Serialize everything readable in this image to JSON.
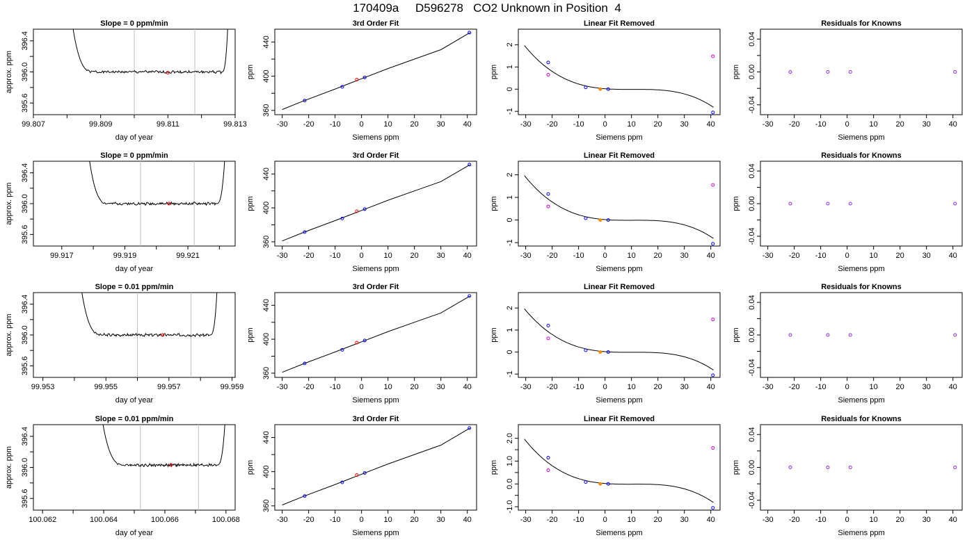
{
  "page_title": "170409a     D596278   CO2 Unknown in Position  4",
  "colors": {
    "curve": "#000000",
    "known_point": "#0000ff",
    "unknown_point": "#ff0000",
    "unknown_removed": "#ff8c00",
    "residual_point": "#8a2be2",
    "raw_point": "#d000d0",
    "window_line": "#bebebe"
  },
  "chart_data": [
    {
      "type": "line",
      "row": 1,
      "title": "Slope =  0  ppm/min",
      "xlabel": "day of year",
      "ylabel": "approx. ppm",
      "xlim": [
        99.807,
        99.813
      ],
      "ylim": [
        395.45,
        396.55
      ],
      "xticks": [
        99.807,
        99.808,
        99.809,
        99.81,
        99.811,
        99.812,
        99.813
      ],
      "xtick_labels": [
        "99.807",
        "",
        "99.809",
        "",
        "99.811",
        "",
        "99.813"
      ],
      "yticks": [
        395.6,
        395.8,
        396.0,
        396.2,
        396.4
      ],
      "ytick_labels": [
        "395.6",
        "",
        "396.0",
        "",
        "396.4"
      ],
      "trace_x": [
        99.8079,
        99.8081,
        99.8088,
        99.8126,
        99.8128
      ],
      "trace_y": [
        397.2,
        396.8,
        396.02,
        396.02,
        396.8
      ],
      "trace_level": 396.0,
      "trace_seed": 1,
      "window_x": [
        99.81,
        99.8118
      ],
      "point": {
        "x": 99.811,
        "y": 395.99
      }
    },
    {
      "type": "scatter",
      "row": 1,
      "title": "3rd Order Fit",
      "xlabel": "Siemens ppm",
      "ylabel": "ppm",
      "xlim": [
        -32.8,
        43.5
      ],
      "ylim": [
        355,
        455
      ],
      "xticks": [
        -30,
        -20,
        -10,
        0,
        10,
        20,
        30,
        40
      ],
      "xtick_labels": [
        "-30",
        "-20",
        "-10",
        "0",
        "10",
        "20",
        "30",
        "40"
      ],
      "yticks": [
        360,
        380,
        400,
        420,
        440
      ],
      "ytick_labels": [
        "360",
        "",
        "400",
        "",
        "440"
      ],
      "curve_x": [
        -30,
        -22,
        -10,
        0,
        10,
        20,
        30,
        41
      ],
      "curve_y": [
        361,
        371,
        385,
        397,
        409,
        420,
        431,
        451
      ],
      "known_x": [
        -21.5,
        -7.3,
        1.2,
        40.8
      ],
      "known_y": [
        371.5,
        387.5,
        398.5,
        451
      ],
      "unknown": {
        "x": -1.8,
        "y": 396
      }
    },
    {
      "type": "scatter",
      "row": 1,
      "title": "Linear Fit Removed",
      "xlabel": "Siemens ppm",
      "ylabel": "ppm",
      "xlim": [
        -32.8,
        43.5
      ],
      "ylim": [
        -1.15,
        2.7
      ],
      "xticks": [
        -30,
        -20,
        -10,
        0,
        10,
        20,
        30,
        40
      ],
      "xtick_labels": [
        "-30",
        "-20",
        "-10",
        "0",
        "10",
        "20",
        "30",
        "40"
      ],
      "yticks": [
        -1,
        0,
        1,
        2
      ],
      "ytick_labels": [
        "-1",
        "0",
        "1",
        "2"
      ],
      "poly": [
        0.0183,
        -0.0092,
        0.000913,
        -2.89e-05
      ],
      "curve_xmin": -30.5,
      "curve_xmax": 41,
      "known_x": [
        -21.5,
        -7.3,
        1.2,
        40.8
      ],
      "known_y": [
        1.2,
        0.08,
        0.0,
        -1.05
      ],
      "raw_x": [
        -21.5,
        40.8
      ],
      "raw_y": [
        0.65,
        1.48
      ],
      "unknown": {
        "x": -1.8,
        "y": 0.0
      }
    },
    {
      "type": "scatter",
      "row": 1,
      "title": "Residuals for Knowns",
      "xlabel": "Siemens ppm",
      "ylabel": "ppm",
      "xlim": [
        -32.8,
        43.5
      ],
      "ylim": [
        -0.052,
        0.052
      ],
      "xticks": [
        -30,
        -20,
        -10,
        0,
        10,
        20,
        30,
        40
      ],
      "xtick_labels": [
        "-30",
        "-20",
        "-10",
        "0",
        "10",
        "20",
        "30",
        "40"
      ],
      "yticks": [
        -0.04,
        -0.02,
        0.0,
        0.02,
        0.04
      ],
      "ytick_labels": [
        "-0.04",
        "",
        "0.00",
        "",
        "0.04"
      ],
      "known_x": [
        -21.5,
        -7.3,
        1.2,
        40.8
      ],
      "known_y": [
        0,
        0,
        0,
        0
      ]
    },
    {
      "type": "line",
      "row": 2,
      "title": "Slope =  0  ppm/min",
      "xlabel": "day of year",
      "ylabel": "approx. ppm",
      "xlim": [
        99.9161,
        99.9225
      ],
      "ylim": [
        395.45,
        396.55
      ],
      "xticks": [
        99.917,
        99.918,
        99.919,
        99.92,
        99.921,
        99.922
      ],
      "xtick_labels": [
        "99.917",
        "",
        "99.919",
        "",
        "99.921",
        ""
      ],
      "yticks": [
        395.6,
        395.8,
        396.0,
        396.2,
        396.4
      ],
      "ytick_labels": [
        "395.6",
        "",
        "396.0",
        "",
        "396.4"
      ],
      "trace_x": [
        99.9176,
        99.9178,
        99.9185,
        99.9219,
        99.9222
      ],
      "trace_y": [
        397.2,
        396.8,
        396.05,
        396.0,
        396.8
      ],
      "trace_level": 396.0,
      "trace_seed": 2,
      "window_x": [
        99.9195,
        99.9212
      ],
      "point": {
        "x": 99.9204,
        "y": 396.0
      }
    },
    {
      "type": "scatter",
      "row": 2,
      "title": "3rd Order Fit",
      "xlabel": "Siemens ppm",
      "ylabel": "ppm",
      "xlim": [
        -32.8,
        43.5
      ],
      "ylim": [
        355,
        455
      ],
      "xticks": [
        -30,
        -20,
        -10,
        0,
        10,
        20,
        30,
        40
      ],
      "xtick_labels": [
        "-30",
        "-20",
        "-10",
        "0",
        "10",
        "20",
        "30",
        "40"
      ],
      "yticks": [
        360,
        380,
        400,
        420,
        440
      ],
      "ytick_labels": [
        "360",
        "",
        "400",
        "",
        "440"
      ],
      "curve_x": [
        -30,
        -22,
        -10,
        0,
        10,
        20,
        30,
        41
      ],
      "curve_y": [
        361,
        371,
        385,
        397,
        409,
        420,
        431,
        451
      ],
      "known_x": [
        -21.5,
        -7.3,
        1.2,
        40.8
      ],
      "known_y": [
        371.5,
        387.5,
        398.5,
        451
      ],
      "unknown": {
        "x": -1.8,
        "y": 396
      }
    },
    {
      "type": "scatter",
      "row": 2,
      "title": "Linear Fit Removed",
      "xlabel": "Siemens ppm",
      "ylabel": "ppm",
      "xlim": [
        -32.8,
        43.5
      ],
      "ylim": [
        -1.15,
        2.6
      ],
      "xticks": [
        -30,
        -20,
        -10,
        0,
        10,
        20,
        30,
        40
      ],
      "xtick_labels": [
        "-30",
        "-20",
        "-10",
        "0",
        "10",
        "20",
        "30",
        "40"
      ],
      "yticks": [
        -1,
        0,
        1,
        2
      ],
      "ytick_labels": [
        "-1",
        "0",
        "1",
        "2"
      ],
      "poly": [
        0.0183,
        -0.0092,
        0.000913,
        -2.89e-05
      ],
      "curve_xmin": -30.5,
      "curve_xmax": 41,
      "known_x": [
        -21.5,
        -7.3,
        1.2,
        40.8
      ],
      "known_y": [
        1.15,
        0.08,
        0.0,
        -1.05
      ],
      "raw_x": [
        -21.5,
        40.8
      ],
      "raw_y": [
        0.6,
        1.55
      ],
      "unknown": {
        "x": -1.8,
        "y": 0.0
      }
    },
    {
      "type": "scatter",
      "row": 2,
      "title": "Residuals for Knowns",
      "xlabel": "Siemens ppm",
      "ylabel": "ppm",
      "xlim": [
        -32.8,
        43.5
      ],
      "ylim": [
        -0.052,
        0.052
      ],
      "xticks": [
        -30,
        -20,
        -10,
        0,
        10,
        20,
        30,
        40
      ],
      "xtick_labels": [
        "-30",
        "-20",
        "-10",
        "0",
        "10",
        "20",
        "30",
        "40"
      ],
      "yticks": [
        -0.04,
        -0.02,
        0.0,
        0.02,
        0.04
      ],
      "ytick_labels": [
        "-0.04",
        "",
        "0.00",
        "",
        "0.04"
      ],
      "known_x": [
        -21.5,
        -7.3,
        1.2,
        40.8
      ],
      "known_y": [
        0,
        0,
        0,
        0
      ]
    },
    {
      "type": "line",
      "row": 3,
      "title": "Slope =  0.01  ppm/min",
      "xlabel": "day of year",
      "ylabel": "approx. ppm",
      "xlim": [
        99.9527,
        99.9591
      ],
      "ylim": [
        395.45,
        396.55
      ],
      "xticks": [
        99.953,
        99.954,
        99.955,
        99.956,
        99.957,
        99.958,
        99.959
      ],
      "xtick_labels": [
        "99.953",
        "",
        "99.955",
        "",
        "99.957",
        "",
        "99.959"
      ],
      "yticks": [
        395.6,
        395.8,
        396.0,
        396.2,
        396.4
      ],
      "ytick_labels": [
        "395.6",
        "",
        "396.0",
        "",
        "396.4"
      ],
      "trace_x": [
        99.95395,
        99.95415,
        99.9549,
        99.9583,
        99.95855
      ],
      "trace_y": [
        397.2,
        396.8,
        396.02,
        396.0,
        396.8
      ],
      "trace_level": 396.0,
      "trace_seed": 3,
      "window_x": [
        99.956,
        99.9577
      ],
      "point": {
        "x": 99.9568,
        "y": 396.0
      }
    },
    {
      "type": "scatter",
      "row": 3,
      "title": "3rd Order Fit",
      "xlabel": "Siemens ppm",
      "ylabel": "ppm",
      "xlim": [
        -32.8,
        43.5
      ],
      "ylim": [
        355,
        455
      ],
      "xticks": [
        -30,
        -20,
        -10,
        0,
        10,
        20,
        30,
        40
      ],
      "xtick_labels": [
        "-30",
        "-20",
        "-10",
        "0",
        "10",
        "20",
        "30",
        "40"
      ],
      "yticks": [
        360,
        380,
        400,
        420,
        440
      ],
      "ytick_labels": [
        "360",
        "",
        "400",
        "",
        "440"
      ],
      "curve_x": [
        -30,
        -22,
        -10,
        0,
        10,
        20,
        30,
        41
      ],
      "curve_y": [
        361,
        371,
        385,
        397,
        409,
        420,
        431,
        451
      ],
      "known_x": [
        -21.5,
        -7.3,
        1.2,
        40.8
      ],
      "known_y": [
        371.5,
        387.5,
        398.5,
        451
      ],
      "unknown": {
        "x": -1.8,
        "y": 396
      }
    },
    {
      "type": "scatter",
      "row": 3,
      "title": "Linear Fit Removed",
      "xlabel": "Siemens ppm",
      "ylabel": "ppm",
      "xlim": [
        -32.8,
        43.5
      ],
      "ylim": [
        -1.15,
        2.7
      ],
      "xticks": [
        -30,
        -20,
        -10,
        0,
        10,
        20,
        30,
        40
      ],
      "xtick_labels": [
        "-30",
        "-20",
        "-10",
        "0",
        "10",
        "20",
        "30",
        "40"
      ],
      "yticks": [
        -1,
        0,
        1,
        2
      ],
      "ytick_labels": [
        "-1",
        "0",
        "1",
        "2"
      ],
      "poly": [
        0.0183,
        -0.0092,
        0.000913,
        -2.89e-05
      ],
      "curve_xmin": -30.5,
      "curve_xmax": 41,
      "known_x": [
        -21.5,
        -7.3,
        1.2,
        40.8
      ],
      "known_y": [
        1.2,
        0.08,
        0.0,
        -1.05
      ],
      "raw_x": [
        -21.5,
        40.8
      ],
      "raw_y": [
        0.62,
        1.48
      ],
      "unknown": {
        "x": -1.8,
        "y": 0.0
      }
    },
    {
      "type": "scatter",
      "row": 3,
      "title": "Residuals for Knowns",
      "xlabel": "Siemens ppm",
      "ylabel": "ppm",
      "xlim": [
        -32.8,
        43.5
      ],
      "ylim": [
        -0.052,
        0.052
      ],
      "xticks": [
        -30,
        -20,
        -10,
        0,
        10,
        20,
        30,
        40
      ],
      "xtick_labels": [
        "-30",
        "-20",
        "-10",
        "0",
        "10",
        "20",
        "30",
        "40"
      ],
      "yticks": [
        -0.04,
        -0.02,
        0.0,
        0.02,
        0.04
      ],
      "ytick_labels": [
        "-0.04",
        "",
        "0.00",
        "",
        "0.04"
      ],
      "known_x": [
        -21.5,
        -7.3,
        1.2,
        40.8
      ],
      "known_y": [
        0,
        0,
        0,
        0
      ]
    },
    {
      "type": "line",
      "row": 4,
      "title": "Slope =  0.01  ppm/min",
      "xlabel": "day of year",
      "ylabel": "approx. ppm",
      "xlim": [
        100.0617,
        100.0683
      ],
      "ylim": [
        395.45,
        396.55
      ],
      "xticks": [
        100.062,
        100.063,
        100.064,
        100.065,
        100.066,
        100.067,
        100.068
      ],
      "xtick_labels": [
        "100.062",
        "",
        "100.064",
        "",
        "100.066",
        "",
        "100.068"
      ],
      "yticks": [
        395.6,
        395.8,
        396.0,
        396.2,
        396.4
      ],
      "ytick_labels": [
        "395.6",
        "",
        "396.0",
        "",
        "396.4"
      ],
      "trace_x": [
        100.0637,
        100.064,
        100.0647,
        100.0677,
        100.068
      ],
      "trace_y": [
        397.2,
        396.5,
        396.05,
        396.03,
        396.8
      ],
      "trace_level": 396.03,
      "trace_seed": 4,
      "window_x": [
        100.0652,
        100.0671
      ],
      "point": {
        "x": 100.0662,
        "y": 396.03
      }
    },
    {
      "type": "scatter",
      "row": 4,
      "title": "3rd Order Fit",
      "xlabel": "Siemens ppm",
      "ylabel": "ppm",
      "xlim": [
        -32.8,
        43.5
      ],
      "ylim": [
        355,
        455
      ],
      "xticks": [
        -30,
        -20,
        -10,
        0,
        10,
        20,
        30,
        40
      ],
      "xtick_labels": [
        "-30",
        "-20",
        "-10",
        "0",
        "10",
        "20",
        "30",
        "40"
      ],
      "yticks": [
        360,
        380,
        400,
        420,
        440
      ],
      "ytick_labels": [
        "360",
        "",
        "400",
        "",
        "440"
      ],
      "curve_x": [
        -30,
        -22,
        -10,
        0,
        10,
        20,
        30,
        41
      ],
      "curve_y": [
        361,
        371,
        385,
        397,
        409,
        420,
        431,
        451
      ],
      "known_x": [
        -21.5,
        -7.3,
        1.2,
        40.8
      ],
      "known_y": [
        371.5,
        387.5,
        398.5,
        451
      ],
      "unknown": {
        "x": -1.8,
        "y": 396
      }
    },
    {
      "type": "scatter",
      "row": 4,
      "title": "Linear Fit Removed",
      "xlabel": "Siemens ppm",
      "ylabel": "ppm",
      "xlim": [
        -32.8,
        43.5
      ],
      "ylim": [
        -1.15,
        2.6
      ],
      "xticks": [
        -30,
        -20,
        -10,
        0,
        10,
        20,
        30,
        40
      ],
      "xtick_labels": [
        "-30",
        "-20",
        "-10",
        "0",
        "10",
        "20",
        "30",
        "40"
      ],
      "yticks": [
        -1.0,
        -0.5,
        0.0,
        0.5,
        1.0,
        1.5,
        2.0
      ],
      "ytick_labels": [
        "-1.0",
        "",
        "0.0",
        "",
        "1.0",
        "",
        "2.0"
      ],
      "poly": [
        0.0183,
        -0.0092,
        0.000913,
        -2.89e-05
      ],
      "curve_xmin": -30.5,
      "curve_xmax": 41,
      "known_x": [
        -21.5,
        -7.3,
        1.2,
        40.8
      ],
      "known_y": [
        1.15,
        0.08,
        0.0,
        -1.05
      ],
      "raw_x": [
        -21.5,
        40.8
      ],
      "raw_y": [
        0.6,
        1.58
      ],
      "unknown": {
        "x": -1.8,
        "y": 0.0
      }
    },
    {
      "type": "scatter",
      "row": 4,
      "title": "Residuals for Knowns",
      "xlabel": "Siemens ppm",
      "ylabel": "ppm",
      "xlim": [
        -32.8,
        43.5
      ],
      "ylim": [
        -0.052,
        0.052
      ],
      "xticks": [
        -30,
        -20,
        -10,
        0,
        10,
        20,
        30,
        40
      ],
      "xtick_labels": [
        "-30",
        "-20",
        "-10",
        "0",
        "10",
        "20",
        "30",
        "40"
      ],
      "yticks": [
        -0.04,
        -0.02,
        0.0,
        0.02,
        0.04
      ],
      "ytick_labels": [
        "-0.04",
        "",
        "0.00",
        "",
        "0.04"
      ],
      "known_x": [
        -21.5,
        -7.3,
        1.2,
        40.8
      ],
      "known_y": [
        0,
        0,
        0,
        0
      ]
    }
  ]
}
